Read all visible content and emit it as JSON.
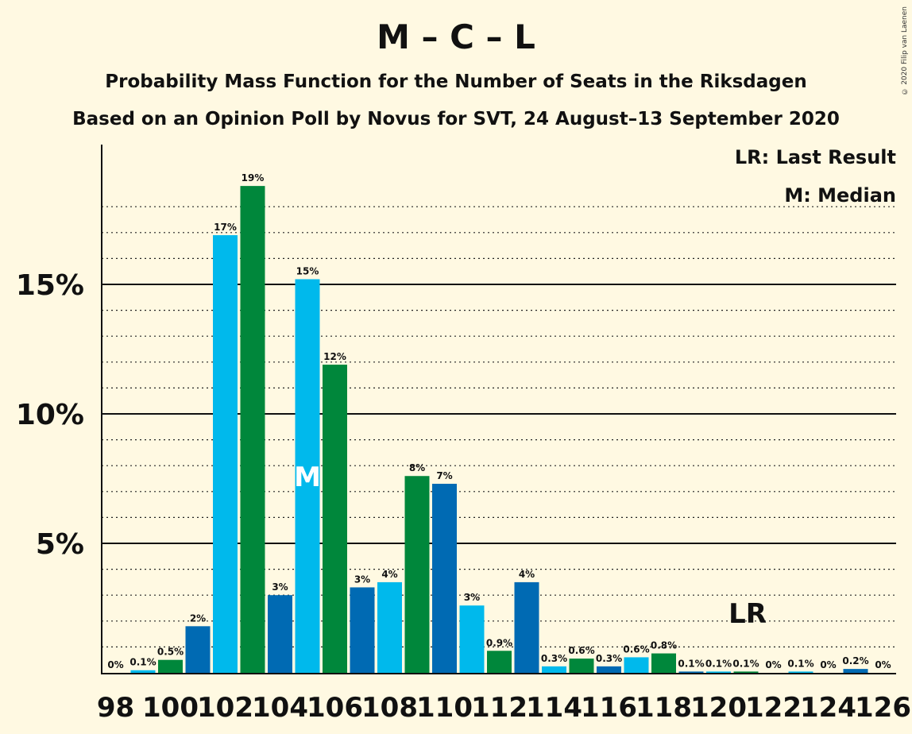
{
  "header": {
    "title": "M – C – L",
    "subtitle": "Probability Mass Function for the Number of Seats in the Riksdagen",
    "subtitle2": "Based on an Opinion Poll by Novus for SVT, 24 August–13 September 2020",
    "copyright": "© 2020 Filip van Laenen"
  },
  "legend": {
    "lr": "LR: Last Result",
    "m": "M: Median"
  },
  "colors": {
    "light_blue": "#00b9ec",
    "green": "#00873b",
    "dark_blue": "#006ab3",
    "background": "#fff9e2"
  },
  "chart_data": {
    "type": "bar",
    "x": [
      98,
      99,
      100,
      101,
      102,
      103,
      104,
      105,
      106,
      107,
      108,
      109,
      110,
      111,
      112,
      113,
      114,
      115,
      116,
      117,
      118,
      119,
      120,
      121,
      122,
      123,
      124,
      125,
      126
    ],
    "values": [
      0,
      0.1,
      0.5,
      1.8,
      16.9,
      18.8,
      3.0,
      15.2,
      11.9,
      3.3,
      3.5,
      7.6,
      7.3,
      2.6,
      0.85,
      3.5,
      0.25,
      0.55,
      0.25,
      0.6,
      0.75,
      0.05,
      0.05,
      0.05,
      0,
      0.05,
      0,
      0.15,
      0
    ],
    "labels": [
      "0%",
      "0.1%",
      "0.5%",
      "2%",
      "17%",
      "19%",
      "3%",
      "15%",
      "12%",
      "3%",
      "4%",
      "8%",
      "7%",
      "3%",
      "0.9%",
      "4%",
      "0.3%",
      "0.6%",
      "0.3%",
      "0.6%",
      "0.8%",
      "0.1%",
      "0.1%",
      "0.1%",
      "0%",
      "0.1%",
      "0%",
      "0.2%",
      "0%"
    ],
    "bar_colors": [
      "light_blue",
      "light_blue",
      "green",
      "dark_blue",
      "light_blue",
      "green",
      "dark_blue",
      "light_blue",
      "green",
      "dark_blue",
      "light_blue",
      "green",
      "dark_blue",
      "light_blue",
      "green",
      "dark_blue",
      "light_blue",
      "green",
      "dark_blue",
      "light_blue",
      "green",
      "dark_blue",
      "light_blue",
      "green",
      "dark_blue",
      "light_blue",
      "green",
      "dark_blue",
      "light_blue"
    ],
    "xticks": [
      "98",
      "100",
      "102",
      "104",
      "106",
      "108",
      "110",
      "112",
      "114",
      "116",
      "118",
      "120",
      "122",
      "124",
      "126"
    ],
    "yticks": [
      "5%",
      "10%",
      "15%"
    ],
    "ytick_values": [
      5,
      10,
      15
    ],
    "ylim": [
      0,
      20.5
    ],
    "median_seat": 105,
    "median_label": "M",
    "last_result_seat": 121,
    "last_result_label": "LR",
    "grid": "dotted every 1%, solid every 5%"
  }
}
